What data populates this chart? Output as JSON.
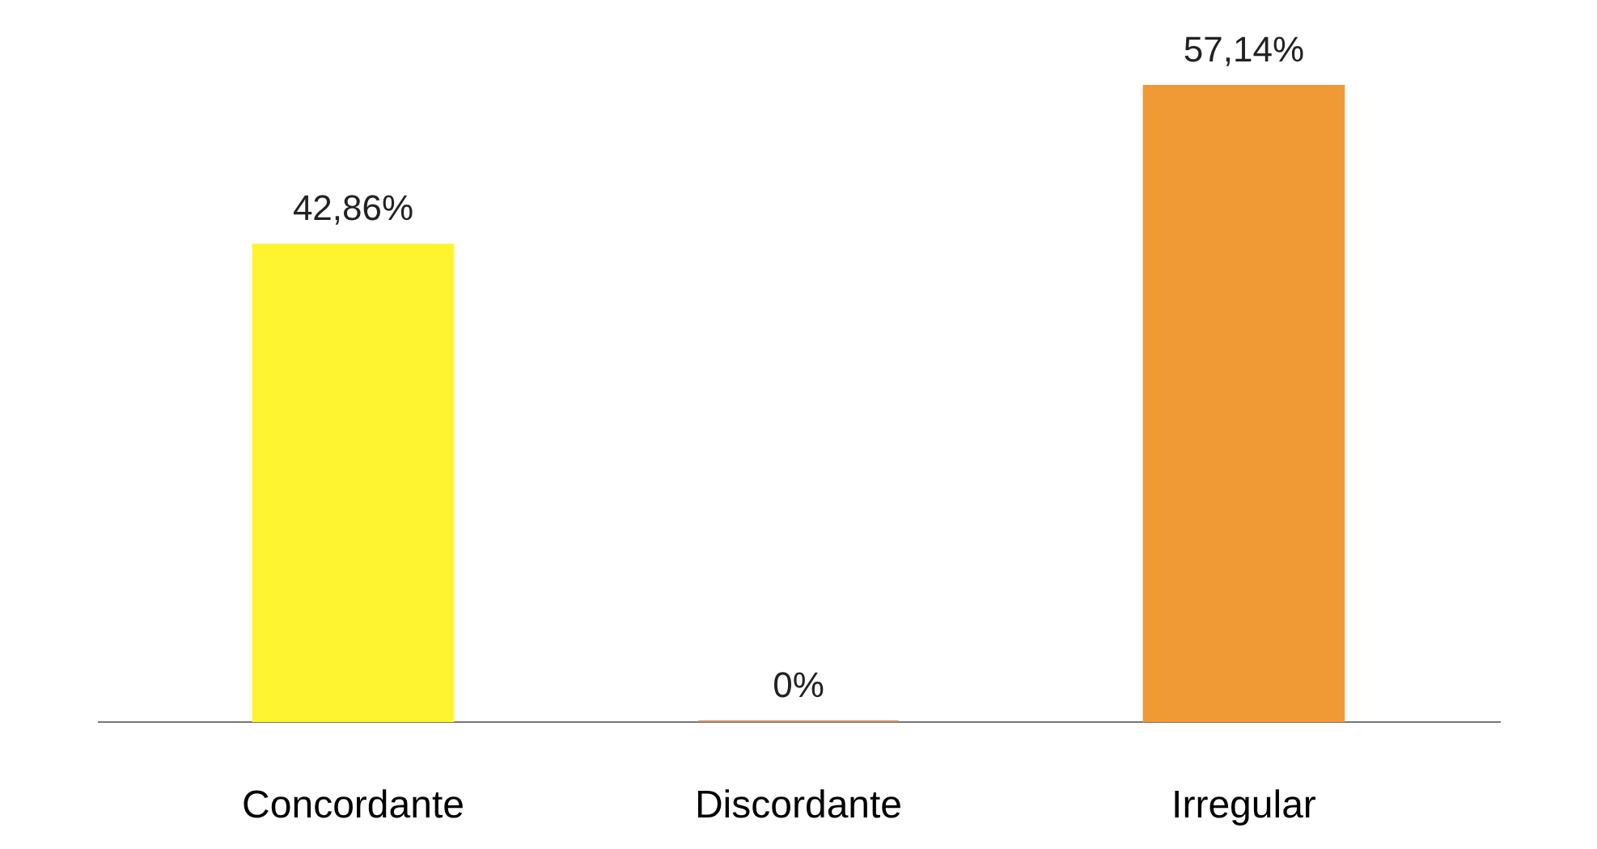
{
  "chart_data": {
    "type": "bar",
    "categories": [
      "Concordante",
      "Discordante",
      "Irregular"
    ],
    "values": [
      42.86,
      0,
      57.14
    ],
    "colors": [
      "#fff42f",
      "#c8906a",
      "#f09a35"
    ],
    "value_labels": [
      "42,86%",
      "0%",
      "57,14%"
    ],
    "grid": false
  }
}
